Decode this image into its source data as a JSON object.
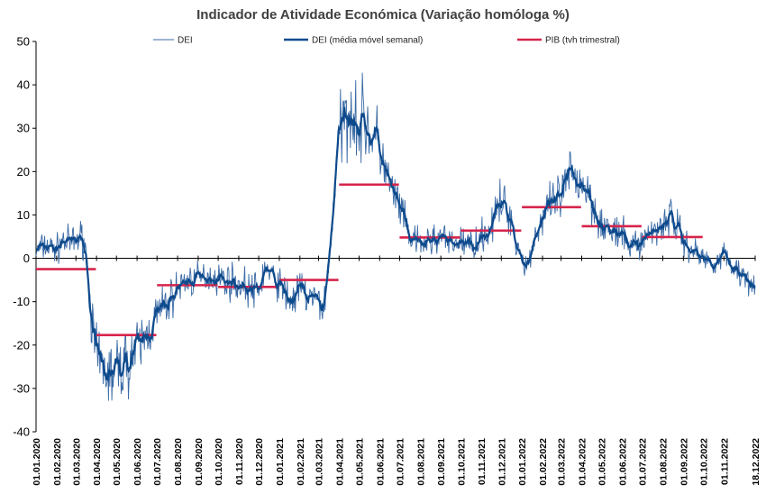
{
  "chart_data": {
    "type": "line",
    "title": "Indicador de Atividade Económica (Variação homóloga %)",
    "ylim": [
      -40,
      50
    ],
    "yticks": [
      -40,
      -30,
      -20,
      -10,
      0,
      10,
      20,
      30,
      40,
      50
    ],
    "x_start": "2020-01-01",
    "x_end": "2022-12-18",
    "xtick_labels": [
      "01.01.2020",
      "01.02.2020",
      "01.03.2020",
      "01.04.2020",
      "01.05.2020",
      "01.06.2020",
      "01.07.2020",
      "01.08.2020",
      "01.09.2020",
      "01.10.2020",
      "01.11.2020",
      "01.12.2020",
      "01.01.2021",
      "01.02.2021",
      "01.03.2021",
      "01.04.2021",
      "01.05.2021",
      "01.06.2021",
      "01.07.2021",
      "01.08.2021",
      "01.09.2021",
      "01.10.2021",
      "01.11.2021",
      "01.12.2021",
      "01.01.2022",
      "01.02.2022",
      "01.03.2022",
      "01.04.2022",
      "01.05.2022",
      "01.06.2022",
      "01.07.2022",
      "01.08.2022",
      "01.09.2022",
      "01.10.2022",
      "01.11.2022",
      "18.12.2022"
    ],
    "grid": false,
    "legend_placement": "top",
    "series": [
      {
        "name": "DEI",
        "style": "thin-line",
        "color": "#3a6aa5",
        "x": [
          "2020-01-01",
          "2020-01-15",
          "2020-02-01",
          "2020-02-10",
          "2020-02-20",
          "2020-03-01",
          "2020-03-10",
          "2020-03-15",
          "2020-03-20",
          "2020-03-25",
          "2020-04-01",
          "2020-04-10",
          "2020-04-20",
          "2020-05-01",
          "2020-05-15",
          "2020-06-01",
          "2020-06-15",
          "2020-07-01",
          "2020-07-15",
          "2020-08-01",
          "2020-08-15",
          "2020-09-01",
          "2020-09-15",
          "2020-10-01",
          "2020-10-15",
          "2020-11-01",
          "2020-11-15",
          "2020-12-01",
          "2020-12-10",
          "2020-12-20",
          "2021-01-01",
          "2021-01-10",
          "2021-01-20",
          "2021-02-01",
          "2021-02-15",
          "2021-03-01",
          "2021-03-10",
          "2021-03-20",
          "2021-03-28",
          "2021-04-01",
          "2021-04-10",
          "2021-04-20",
          "2021-05-01",
          "2021-05-10",
          "2021-05-20",
          "2021-06-01",
          "2021-06-15",
          "2021-07-01",
          "2021-07-15",
          "2021-08-01",
          "2021-08-15",
          "2021-09-01",
          "2021-09-15",
          "2021-10-01",
          "2021-10-15",
          "2021-11-01",
          "2021-11-15",
          "2021-12-01",
          "2021-12-15",
          "2021-12-25",
          "2022-01-01",
          "2022-01-10",
          "2022-01-20",
          "2022-02-01",
          "2022-02-15",
          "2022-03-01",
          "2022-03-15",
          "2022-04-01",
          "2022-04-15",
          "2022-05-01",
          "2022-05-15",
          "2022-06-01",
          "2022-06-15",
          "2022-07-01",
          "2022-07-15",
          "2022-08-01",
          "2022-08-15",
          "2022-09-01",
          "2022-09-15",
          "2022-10-01",
          "2022-10-15",
          "2022-11-01",
          "2022-11-15",
          "2022-12-01",
          "2022-12-18"
        ],
        "values": [
          1.5,
          3,
          2,
          4,
          3.5,
          4,
          5,
          3,
          -5,
          -15,
          -24,
          -25,
          -27,
          -26,
          -24,
          -21,
          -18,
          -13,
          -11,
          -7,
          -5,
          -5,
          -4,
          -4.5,
          -5,
          -6,
          -7,
          -8,
          -2,
          -4,
          -6,
          -8,
          -10,
          -7,
          -9,
          -10,
          -11,
          5,
          22,
          28,
          32,
          36,
          30,
          32,
          28,
          26,
          17,
          12,
          5,
          3,
          4,
          5,
          3,
          4,
          3,
          5,
          7,
          13,
          10,
          3,
          0,
          -2,
          5,
          9,
          12,
          14,
          19,
          18,
          14,
          8,
          6,
          5,
          3,
          4,
          6,
          8,
          10,
          4,
          2,
          0,
          -1,
          1,
          -2,
          -4,
          -5
        ]
      },
      {
        "name": "DEI (média móvel semanal)",
        "style": "thick-line",
        "color": "#0d4a8c",
        "x": [
          "2020-01-01",
          "2020-01-15",
          "2020-02-01",
          "2020-02-10",
          "2020-02-20",
          "2020-03-01",
          "2020-03-10",
          "2020-03-15",
          "2020-03-20",
          "2020-03-25",
          "2020-04-01",
          "2020-04-10",
          "2020-04-20",
          "2020-05-01",
          "2020-05-15",
          "2020-06-01",
          "2020-06-15",
          "2020-07-01",
          "2020-07-15",
          "2020-08-01",
          "2020-08-15",
          "2020-09-01",
          "2020-09-15",
          "2020-10-01",
          "2020-10-15",
          "2020-11-01",
          "2020-11-15",
          "2020-12-01",
          "2020-12-10",
          "2020-12-20",
          "2021-01-01",
          "2021-01-10",
          "2021-01-20",
          "2021-02-01",
          "2021-02-15",
          "2021-03-01",
          "2021-03-10",
          "2021-03-20",
          "2021-03-28",
          "2021-04-01",
          "2021-04-10",
          "2021-04-20",
          "2021-05-01",
          "2021-05-10",
          "2021-05-20",
          "2021-06-01",
          "2021-06-15",
          "2021-07-01",
          "2021-07-15",
          "2021-08-01",
          "2021-08-15",
          "2021-09-01",
          "2021-09-15",
          "2021-10-01",
          "2021-10-15",
          "2021-11-01",
          "2021-11-15",
          "2021-12-01",
          "2021-12-15",
          "2021-12-25",
          "2022-01-01",
          "2022-01-10",
          "2022-01-20",
          "2022-02-01",
          "2022-02-15",
          "2022-03-01",
          "2022-03-15",
          "2022-04-01",
          "2022-04-15",
          "2022-05-01",
          "2022-05-15",
          "2022-06-01",
          "2022-06-15",
          "2022-07-01",
          "2022-07-15",
          "2022-08-01",
          "2022-08-15",
          "2022-09-01",
          "2022-09-15",
          "2022-10-01",
          "2022-10-15",
          "2022-11-01",
          "2022-11-15",
          "2022-12-01",
          "2022-12-18"
        ],
        "values": [
          1.5,
          3,
          2,
          4,
          3.5,
          4,
          5,
          3,
          -5,
          -15,
          -24,
          -25,
          -27,
          -26,
          -24,
          -21,
          -18,
          -13,
          -11,
          -7,
          -5,
          -5,
          -4,
          -4.5,
          -5,
          -6,
          -7,
          -8,
          -2,
          -4,
          -6,
          -8,
          -10,
          -7,
          -9,
          -10,
          -11,
          5,
          22,
          28,
          32,
          36,
          30,
          32,
          28,
          26,
          17,
          12,
          5,
          3,
          4,
          5,
          3,
          4,
          3,
          5,
          7,
          13,
          10,
          3,
          0,
          -2,
          5,
          9,
          12,
          14,
          19,
          18,
          14,
          8,
          6,
          5,
          3,
          4,
          6,
          8,
          10,
          4,
          2,
          0,
          -1,
          1,
          -2,
          -4,
          -5
        ]
      },
      {
        "name": "PIB (tvh trimestral)",
        "style": "step",
        "color": "#d6244c",
        "segments": [
          {
            "start": "2020-01-01",
            "end": "2020-03-31",
            "value": -2.5
          },
          {
            "start": "2020-04-01",
            "end": "2020-06-30",
            "value": -17.7
          },
          {
            "start": "2020-07-01",
            "end": "2020-09-30",
            "value": -6.2
          },
          {
            "start": "2020-10-01",
            "end": "2020-12-31",
            "value": -6.6
          },
          {
            "start": "2021-01-01",
            "end": "2021-03-31",
            "value": -5
          },
          {
            "start": "2021-04-01",
            "end": "2021-06-30",
            "value": 17
          },
          {
            "start": "2021-07-01",
            "end": "2021-09-30",
            "value": 4.8
          },
          {
            "start": "2021-10-01",
            "end": "2021-12-31",
            "value": 6.4
          },
          {
            "start": "2022-01-01",
            "end": "2022-03-31",
            "value": 11.8
          },
          {
            "start": "2022-04-01",
            "end": "2022-06-30",
            "value": 7.4
          },
          {
            "start": "2022-07-01",
            "end": "2022-09-30",
            "value": 4.9
          }
        ]
      }
    ]
  }
}
